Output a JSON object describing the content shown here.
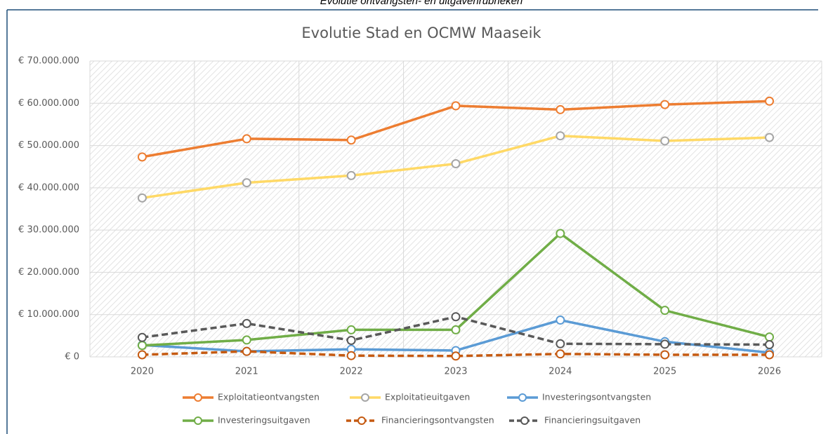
{
  "heading": "Evolutie ontvangsten- en uitgavenrubrieken",
  "chart_data": {
    "type": "line",
    "title": "Evolutie Stad en OCMW Maaseik",
    "categories": [
      "2020",
      "2021",
      "2022",
      "2023",
      "2024",
      "2025",
      "2026"
    ],
    "ylim": [
      0,
      70000000
    ],
    "yticks": [
      {
        "value": 0,
        "label": "€ 0"
      },
      {
        "value": 10000000,
        "label": "€ 10.000.000"
      },
      {
        "value": 20000000,
        "label": "€ 20.000.000"
      },
      {
        "value": 30000000,
        "label": "€ 30.000.000"
      },
      {
        "value": 40000000,
        "label": "€ 40.000.000"
      },
      {
        "value": 50000000,
        "label": "€ 50.000.000"
      },
      {
        "value": 60000000,
        "label": "€ 60.000.000"
      },
      {
        "value": 70000000,
        "label": "€ 70.000.000"
      }
    ],
    "grid": true,
    "legend": "bottom",
    "series": [
      {
        "name": "Exploitatieontvangsten",
        "color": "#ed7d31",
        "values": [
          47300000,
          51600000,
          51300000,
          59400000,
          58500000,
          59700000,
          60500000
        ]
      },
      {
        "name": "Exploitatieuitgaven",
        "color": "#ffd966",
        "marker_color": "#a5a5a5",
        "values": [
          37600000,
          41200000,
          42900000,
          45700000,
          52300000,
          51100000,
          51900000
        ]
      },
      {
        "name": "Investeringsontvangsten",
        "color": "#5b9bd5",
        "values": [
          2800000,
          1300000,
          1800000,
          1500000,
          8700000,
          3600000,
          1000000
        ]
      },
      {
        "name": "Investeringsuitgaven",
        "color": "#70ad47",
        "values": [
          2700000,
          4000000,
          6400000,
          6400000,
          29200000,
          11000000,
          4700000
        ]
      },
      {
        "name": "Financieringsontvangsten",
        "color": "#c55a11",
        "dashed": true,
        "values": [
          500000,
          1300000,
          300000,
          200000,
          700000,
          500000,
          500000
        ]
      },
      {
        "name": "Financieringsuitgaven",
        "color": "#595959",
        "dashed": true,
        "values": [
          4600000,
          7900000,
          3900000,
          9500000,
          3100000,
          3000000,
          2900000
        ]
      }
    ]
  }
}
